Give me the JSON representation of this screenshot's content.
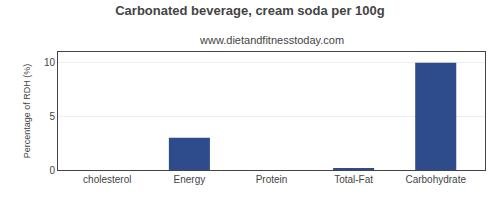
{
  "chart_data": {
    "type": "bar",
    "title": "Carbonated beverage, cream soda per 100g",
    "subtitle": "www.dietandfitnesstoday.com",
    "categories": [
      "cholesterol",
      "Energy",
      "Protein",
      "Total-Fat",
      "Carbohydrate"
    ],
    "values": [
      0,
      3.0,
      0,
      0.1,
      10.0
    ],
    "color": "#2e4b8c",
    "ylabel": "Percentage of RDH (%)",
    "ylim": [
      0,
      11
    ],
    "yticks": [
      0,
      5,
      10
    ],
    "grid": true
  }
}
